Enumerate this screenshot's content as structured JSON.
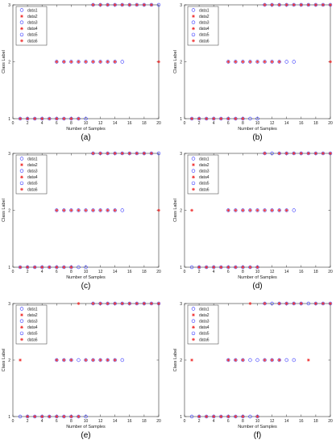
{
  "colors": {
    "blue": "#3333ff",
    "red": "#ee2222",
    "axis": "#333333"
  },
  "chart_data": [
    {
      "type": "scatter",
      "caption": "(a)",
      "xlabel": "Number of Samples",
      "ylabel": "Class Label",
      "xlim": [
        0,
        20
      ],
      "ylim": [
        1,
        3
      ],
      "xticks": [
        "0",
        "2",
        "4",
        "6",
        "8",
        "10",
        "12",
        "14",
        "16",
        "18",
        "20"
      ],
      "yticks": [
        "1",
        "2",
        "3"
      ],
      "legend": [
        "data1",
        "data2",
        "data3",
        "data4",
        "data5",
        "data6"
      ],
      "blue_circles": [
        [
          1,
          1
        ],
        [
          2,
          1
        ],
        [
          3,
          1
        ],
        [
          4,
          1
        ],
        [
          5,
          1
        ],
        [
          6,
          1
        ],
        [
          7,
          1
        ],
        [
          8,
          1
        ],
        [
          9,
          1
        ],
        [
          10,
          1
        ],
        [
          6,
          2
        ],
        [
          7,
          2
        ],
        [
          8,
          2
        ],
        [
          9,
          2
        ],
        [
          10,
          2
        ],
        [
          11,
          2
        ],
        [
          12,
          2
        ],
        [
          13,
          2
        ],
        [
          14,
          2
        ],
        [
          15,
          2
        ],
        [
          11,
          3
        ],
        [
          12,
          3
        ],
        [
          13,
          3
        ],
        [
          14,
          3
        ],
        [
          15,
          3
        ],
        [
          16,
          3
        ],
        [
          17,
          3
        ],
        [
          18,
          3
        ],
        [
          19,
          3
        ],
        [
          20,
          3
        ]
      ],
      "red_stars": [
        [
          1,
          1
        ],
        [
          2,
          1
        ],
        [
          3,
          1
        ],
        [
          4,
          1
        ],
        [
          5,
          1
        ],
        [
          6,
          1
        ],
        [
          7,
          1
        ],
        [
          8,
          1
        ],
        [
          9,
          1
        ],
        [
          6,
          2
        ],
        [
          7,
          2
        ],
        [
          8,
          2
        ],
        [
          9,
          2
        ],
        [
          10,
          2
        ],
        [
          11,
          2
        ],
        [
          12,
          2
        ],
        [
          13,
          2
        ],
        [
          14,
          2
        ],
        [
          20,
          2
        ],
        [
          11,
          3
        ],
        [
          12,
          3
        ],
        [
          13,
          3
        ],
        [
          14,
          3
        ],
        [
          15,
          3
        ],
        [
          16,
          3
        ],
        [
          17,
          3
        ],
        [
          18,
          3
        ],
        [
          19,
          3
        ]
      ]
    },
    {
      "type": "scatter",
      "caption": "(b)",
      "xlabel": "Number of Samples",
      "ylabel": "Class Label",
      "xlim": [
        0,
        20
      ],
      "ylim": [
        1,
        3
      ],
      "xticks": [
        "0",
        "2",
        "4",
        "6",
        "8",
        "10",
        "12",
        "14",
        "16",
        "18",
        "20"
      ],
      "yticks": [
        "1",
        "2",
        "3"
      ],
      "legend": [
        "data1",
        "data2",
        "data3",
        "data4",
        "data5",
        "data6"
      ],
      "blue_circles": [
        [
          1,
          1
        ],
        [
          2,
          1
        ],
        [
          3,
          1
        ],
        [
          4,
          1
        ],
        [
          5,
          1
        ],
        [
          6,
          1
        ],
        [
          7,
          1
        ],
        [
          8,
          1
        ],
        [
          9,
          1
        ],
        [
          10,
          1
        ],
        [
          6,
          2
        ],
        [
          7,
          2
        ],
        [
          8,
          2
        ],
        [
          9,
          2
        ],
        [
          10,
          2
        ],
        [
          11,
          2
        ],
        [
          12,
          2
        ],
        [
          13,
          2
        ],
        [
          14,
          2
        ],
        [
          15,
          2
        ],
        [
          11,
          3
        ],
        [
          12,
          3
        ],
        [
          13,
          3
        ],
        [
          14,
          3
        ],
        [
          15,
          3
        ],
        [
          16,
          3
        ],
        [
          17,
          3
        ],
        [
          18,
          3
        ],
        [
          19,
          3
        ],
        [
          20,
          3
        ]
      ],
      "red_stars": [
        [
          1,
          1
        ],
        [
          2,
          1
        ],
        [
          3,
          1
        ],
        [
          4,
          1
        ],
        [
          5,
          1
        ],
        [
          6,
          1
        ],
        [
          7,
          1
        ],
        [
          8,
          1
        ],
        [
          6,
          2
        ],
        [
          7,
          2
        ],
        [
          8,
          2
        ],
        [
          9,
          2
        ],
        [
          10,
          2
        ],
        [
          11,
          2
        ],
        [
          12,
          2
        ],
        [
          13,
          2
        ],
        [
          20,
          2
        ],
        [
          11,
          3
        ],
        [
          12,
          3
        ],
        [
          13,
          3
        ],
        [
          14,
          3
        ],
        [
          15,
          3
        ],
        [
          16,
          3
        ],
        [
          17,
          3
        ],
        [
          18,
          3
        ],
        [
          19,
          3
        ],
        [
          20,
          3
        ]
      ]
    },
    {
      "type": "scatter",
      "caption": "(c)",
      "xlabel": "Number of Samples",
      "ylabel": "Class Label",
      "xlim": [
        0,
        20
      ],
      "ylim": [
        1,
        3
      ],
      "xticks": [
        "0",
        "2",
        "4",
        "6",
        "8",
        "10",
        "12",
        "14",
        "16",
        "18",
        "20"
      ],
      "yticks": [
        "1",
        "2",
        "3"
      ],
      "legend": [
        "data1",
        "data2",
        "data3",
        "data4",
        "data5",
        "data6"
      ],
      "blue_circles": [
        [
          1,
          1
        ],
        [
          2,
          1
        ],
        [
          3,
          1
        ],
        [
          4,
          1
        ],
        [
          5,
          1
        ],
        [
          6,
          1
        ],
        [
          7,
          1
        ],
        [
          8,
          1
        ],
        [
          9,
          1
        ],
        [
          10,
          1
        ],
        [
          6,
          2
        ],
        [
          7,
          2
        ],
        [
          8,
          2
        ],
        [
          9,
          2
        ],
        [
          10,
          2
        ],
        [
          11,
          2
        ],
        [
          12,
          2
        ],
        [
          13,
          2
        ],
        [
          14,
          2
        ],
        [
          15,
          2
        ],
        [
          11,
          3
        ],
        [
          12,
          3
        ],
        [
          13,
          3
        ],
        [
          14,
          3
        ],
        [
          15,
          3
        ],
        [
          16,
          3
        ],
        [
          17,
          3
        ],
        [
          18,
          3
        ],
        [
          19,
          3
        ],
        [
          20,
          3
        ]
      ],
      "red_stars": [
        [
          1,
          1
        ],
        [
          2,
          1
        ],
        [
          3,
          1
        ],
        [
          4,
          1
        ],
        [
          5,
          1
        ],
        [
          6,
          1
        ],
        [
          7,
          1
        ],
        [
          8,
          1
        ],
        [
          6,
          2
        ],
        [
          7,
          2
        ],
        [
          8,
          2
        ],
        [
          9,
          2
        ],
        [
          10,
          2
        ],
        [
          11,
          2
        ],
        [
          12,
          2
        ],
        [
          13,
          2
        ],
        [
          14,
          2
        ],
        [
          20,
          2
        ],
        [
          11,
          3
        ],
        [
          12,
          3
        ],
        [
          13,
          3
        ],
        [
          14,
          3
        ],
        [
          15,
          3
        ],
        [
          16,
          3
        ],
        [
          17,
          3
        ],
        [
          18,
          3
        ],
        [
          19,
          3
        ]
      ]
    },
    {
      "type": "scatter",
      "caption": "(d)",
      "xlabel": "Number of Samples",
      "ylabel": "Class Label",
      "xlim": [
        0,
        20
      ],
      "ylim": [
        1,
        3
      ],
      "xticks": [
        "0",
        "2",
        "4",
        "6",
        "8",
        "10",
        "12",
        "14",
        "16",
        "18",
        "20"
      ],
      "yticks": [
        "1",
        "2",
        "3"
      ],
      "legend": [
        "data1",
        "data2",
        "data3",
        "data4",
        "data5",
        "data6"
      ],
      "blue_circles": [
        [
          1,
          1
        ],
        [
          2,
          1
        ],
        [
          3,
          1
        ],
        [
          4,
          1
        ],
        [
          5,
          1
        ],
        [
          6,
          1
        ],
        [
          7,
          1
        ],
        [
          8,
          1
        ],
        [
          9,
          1
        ],
        [
          10,
          1
        ],
        [
          6,
          2
        ],
        [
          7,
          2
        ],
        [
          8,
          2
        ],
        [
          9,
          2
        ],
        [
          10,
          2
        ],
        [
          11,
          2
        ],
        [
          12,
          2
        ],
        [
          13,
          2
        ],
        [
          14,
          2
        ],
        [
          15,
          2
        ],
        [
          11,
          3
        ],
        [
          12,
          3
        ],
        [
          13,
          3
        ],
        [
          14,
          3
        ],
        [
          15,
          3
        ],
        [
          16,
          3
        ],
        [
          17,
          3
        ],
        [
          18,
          3
        ],
        [
          19,
          3
        ],
        [
          20,
          3
        ]
      ],
      "red_stars": [
        [
          2,
          1
        ],
        [
          3,
          1
        ],
        [
          4,
          1
        ],
        [
          5,
          1
        ],
        [
          6,
          1
        ],
        [
          7,
          1
        ],
        [
          8,
          1
        ],
        [
          9,
          1
        ],
        [
          10,
          1
        ],
        [
          1,
          2
        ],
        [
          6,
          2
        ],
        [
          7,
          2
        ],
        [
          8,
          2
        ],
        [
          9,
          2
        ],
        [
          10,
          2
        ],
        [
          11,
          2
        ],
        [
          12,
          2
        ],
        [
          13,
          2
        ],
        [
          14,
          2
        ],
        [
          11,
          3
        ],
        [
          13,
          3
        ],
        [
          14,
          3
        ],
        [
          15,
          3
        ],
        [
          16,
          3
        ],
        [
          17,
          3
        ],
        [
          18,
          3
        ],
        [
          19,
          3
        ],
        [
          20,
          3
        ]
      ]
    },
    {
      "type": "scatter",
      "caption": "(e)",
      "xlabel": "Number of Samples",
      "ylabel": "Class Label",
      "xlim": [
        0,
        20
      ],
      "ylim": [
        1,
        3
      ],
      "xticks": [
        "0",
        "2",
        "4",
        "6",
        "8",
        "10",
        "12",
        "14",
        "16",
        "18",
        "20"
      ],
      "yticks": [
        "1",
        "2",
        "3"
      ],
      "legend": [
        "data1",
        "data2",
        "data3",
        "data4",
        "data5",
        "data6"
      ],
      "blue_circles": [
        [
          1,
          1
        ],
        [
          2,
          1
        ],
        [
          3,
          1
        ],
        [
          4,
          1
        ],
        [
          5,
          1
        ],
        [
          6,
          1
        ],
        [
          7,
          1
        ],
        [
          8,
          1
        ],
        [
          9,
          1
        ],
        [
          10,
          1
        ],
        [
          6,
          2
        ],
        [
          7,
          2
        ],
        [
          8,
          2
        ],
        [
          9,
          2
        ],
        [
          10,
          2
        ],
        [
          11,
          2
        ],
        [
          12,
          2
        ],
        [
          13,
          2
        ],
        [
          14,
          2
        ],
        [
          15,
          2
        ],
        [
          11,
          3
        ],
        [
          12,
          3
        ],
        [
          13,
          3
        ],
        [
          14,
          3
        ],
        [
          15,
          3
        ],
        [
          16,
          3
        ],
        [
          17,
          3
        ],
        [
          18,
          3
        ],
        [
          19,
          3
        ],
        [
          20,
          3
        ]
      ],
      "red_stars": [
        [
          2,
          1
        ],
        [
          3,
          1
        ],
        [
          4,
          1
        ],
        [
          5,
          1
        ],
        [
          6,
          1
        ],
        [
          7,
          1
        ],
        [
          8,
          1
        ],
        [
          9,
          1
        ],
        [
          1,
          2
        ],
        [
          6,
          2
        ],
        [
          7,
          2
        ],
        [
          8,
          2
        ],
        [
          10,
          2
        ],
        [
          11,
          2
        ],
        [
          12,
          2
        ],
        [
          13,
          2
        ],
        [
          14,
          2
        ],
        [
          9,
          3
        ],
        [
          11,
          3
        ],
        [
          12,
          3
        ],
        [
          13,
          3
        ],
        [
          14,
          3
        ],
        [
          15,
          3
        ],
        [
          16,
          3
        ],
        [
          17,
          3
        ],
        [
          18,
          3
        ],
        [
          19,
          3
        ],
        [
          20,
          3
        ]
      ]
    },
    {
      "type": "scatter",
      "caption": "(f)",
      "xlabel": "Number of Samples",
      "ylabel": "Class Label",
      "xlim": [
        0,
        20
      ],
      "ylim": [
        1,
        3
      ],
      "xticks": [
        "0",
        "2",
        "4",
        "6",
        "8",
        "10",
        "12",
        "14",
        "16",
        "18",
        "20"
      ],
      "yticks": [
        "1",
        "2",
        "3"
      ],
      "legend": [
        "data1",
        "data2",
        "data3",
        "data4",
        "data5",
        "data6"
      ],
      "blue_circles": [
        [
          1,
          1
        ],
        [
          2,
          1
        ],
        [
          3,
          1
        ],
        [
          4,
          1
        ],
        [
          5,
          1
        ],
        [
          6,
          1
        ],
        [
          7,
          1
        ],
        [
          8,
          1
        ],
        [
          9,
          1
        ],
        [
          10,
          1
        ],
        [
          6,
          2
        ],
        [
          7,
          2
        ],
        [
          8,
          2
        ],
        [
          9,
          2
        ],
        [
          10,
          2
        ],
        [
          11,
          2
        ],
        [
          12,
          2
        ],
        [
          13,
          2
        ],
        [
          14,
          2
        ],
        [
          15,
          2
        ],
        [
          11,
          3
        ],
        [
          12,
          3
        ],
        [
          13,
          3
        ],
        [
          14,
          3
        ],
        [
          15,
          3
        ],
        [
          16,
          3
        ],
        [
          17,
          3
        ],
        [
          18,
          3
        ],
        [
          19,
          3
        ],
        [
          20,
          3
        ]
      ],
      "red_stars": [
        [
          2,
          1
        ],
        [
          3,
          1
        ],
        [
          4,
          1
        ],
        [
          5,
          1
        ],
        [
          6,
          1
        ],
        [
          7,
          1
        ],
        [
          8,
          1
        ],
        [
          10,
          1
        ],
        [
          1,
          2
        ],
        [
          6,
          2
        ],
        [
          7,
          2
        ],
        [
          8,
          2
        ],
        [
          11,
          2
        ],
        [
          12,
          2
        ],
        [
          13,
          2
        ],
        [
          17,
          2
        ],
        [
          9,
          3
        ],
        [
          11,
          3
        ],
        [
          13,
          3
        ],
        [
          14,
          3
        ],
        [
          15,
          3
        ],
        [
          16,
          3
        ],
        [
          18,
          3
        ],
        [
          19,
          3
        ],
        [
          20,
          3
        ]
      ]
    }
  ]
}
